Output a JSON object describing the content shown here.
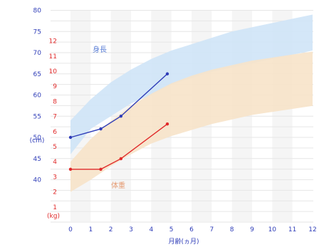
{
  "chart_data": {
    "type": "line",
    "xlabel": "月齢(ヵ月)",
    "x_ticks": [
      0,
      1,
      2,
      3,
      4,
      5,
      6,
      7,
      8,
      9,
      10,
      11,
      12
    ],
    "xlim": [
      0,
      12
    ],
    "height_axis": {
      "unit": "(cm)",
      "ticks": [
        40,
        45,
        50,
        55,
        60,
        65,
        70,
        75,
        80
      ],
      "color": "#2f3db8"
    },
    "weight_axis": {
      "unit": "(kg)",
      "ticks": [
        1,
        2,
        3,
        4,
        5,
        6,
        7,
        8,
        9,
        10,
        11,
        12
      ],
      "color": "#e02a2a"
    },
    "series": [
      {
        "name": "身長",
        "label_color": "#5b7fd6",
        "line_color": "#2f3db8",
        "band_color": "#cfe4f7",
        "axis": "height",
        "x": [
          0,
          1.5,
          2.5,
          4.8
        ],
        "y": [
          50,
          52,
          55,
          65
        ],
        "band_x": [
          0,
          1,
          2,
          3,
          4,
          5,
          6,
          7,
          8,
          9,
          10,
          11,
          12
        ],
        "band_lower": [
          46,
          52,
          55,
          58,
          60,
          62.5,
          64,
          65.5,
          66.5,
          67.5,
          68.5,
          69.5,
          70.5
        ],
        "band_upper": [
          54,
          59,
          63,
          66,
          68.5,
          70.5,
          72,
          73.5,
          75,
          76,
          77,
          78,
          79
        ]
      },
      {
        "name": "体重",
        "label_color": "#e59b73",
        "line_color": "#e02a2a",
        "band_color": "#f7e3c9",
        "axis": "weight",
        "x": [
          0,
          1.5,
          2.5,
          4.8
        ],
        "y": [
          3.5,
          3.5,
          4.2,
          6.5
        ],
        "band_x": [
          0,
          1,
          2,
          3,
          4,
          5,
          6,
          7,
          8,
          9,
          10,
          11,
          12
        ],
        "band_lower": [
          2.0,
          2.8,
          3.7,
          4.5,
          5.2,
          5.7,
          6.1,
          6.5,
          6.8,
          7.1,
          7.3,
          7.5,
          7.7
        ],
        "band_upper": [
          4.0,
          5.5,
          6.7,
          7.7,
          8.5,
          9.2,
          9.7,
          10.1,
          10.4,
          10.7,
          10.9,
          11.1,
          11.3
        ]
      }
    ]
  }
}
